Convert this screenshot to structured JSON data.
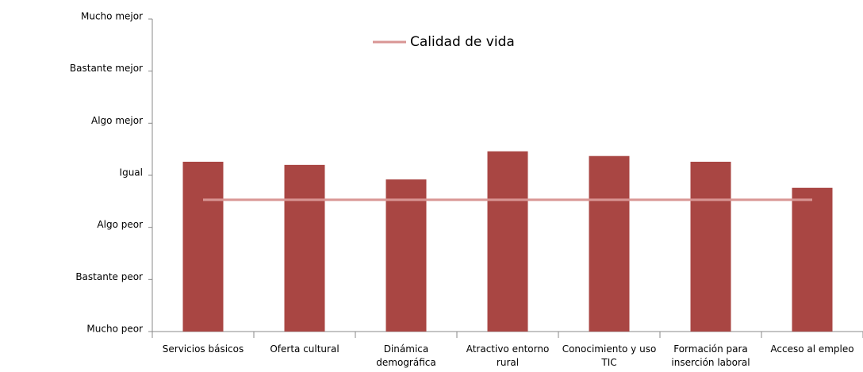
{
  "chart_data": {
    "type": "bar",
    "categories": [
      "Servicios básicos",
      "Oferta cultural",
      "Dinámica demográfica",
      "Atractivo entorno rural",
      "Conocimiento y uso TIC",
      "Formación para inserción laboral",
      "Acceso al empleo"
    ],
    "series": [
      {
        "color": "#a94643",
        "values": [
          4.26,
          4.2,
          3.92,
          4.46,
          4.37,
          4.26,
          3.76
        ]
      },
      {
        "name": "Calidad de vida",
        "type": "line",
        "color": "#d99694",
        "values": [
          3.53,
          3.53,
          3.53,
          3.53,
          3.53,
          3.53,
          3.53
        ]
      }
    ],
    "ylim": [
      1,
      7
    ],
    "yticks": [
      {
        "value": 1,
        "label": "Mucho peor"
      },
      {
        "value": 2,
        "label": "Bastante peor"
      },
      {
        "value": 3,
        "label": "Algo peor"
      },
      {
        "value": 4,
        "label": "Igual"
      },
      {
        "value": 5,
        "label": "Algo mejor"
      },
      {
        "value": 6,
        "label": "Bastante mejor"
      },
      {
        "value": 7,
        "label": "Mucho mejor"
      }
    ],
    "legend": "top"
  }
}
